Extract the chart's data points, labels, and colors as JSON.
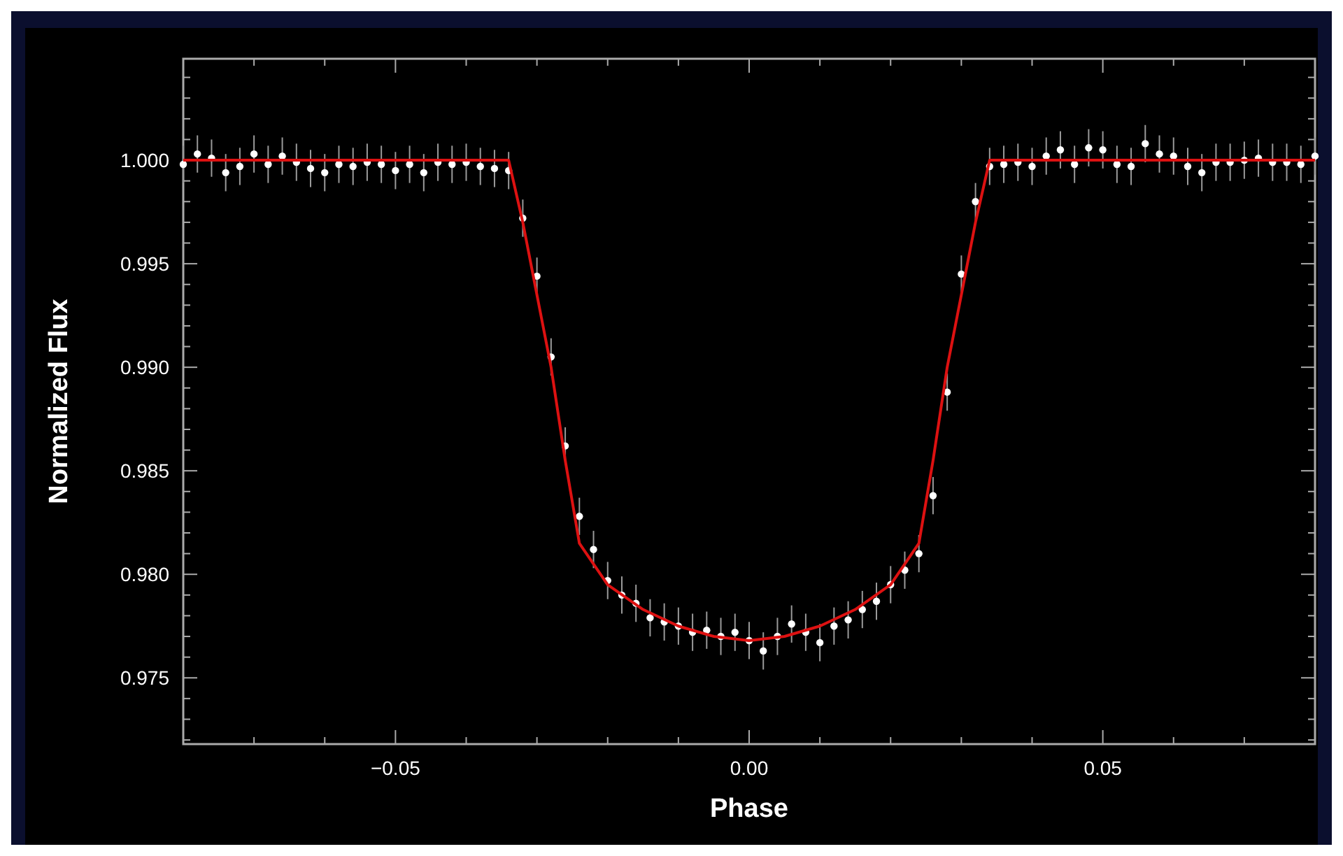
{
  "chart_data": {
    "type": "scatter",
    "xlabel": "Phase",
    "ylabel": "Normalized Flux",
    "xlim": [
      -0.08,
      0.08
    ],
    "ylim": [
      0.9718,
      1.0049
    ],
    "xticks": [
      {
        "value": -0.08,
        "label": null
      },
      {
        "value": -0.07,
        "label": null
      },
      {
        "value": -0.06,
        "label": null
      },
      {
        "value": -0.05,
        "label": "−0.05"
      },
      {
        "value": -0.04,
        "label": null
      },
      {
        "value": -0.03,
        "label": null
      },
      {
        "value": -0.02,
        "label": null
      },
      {
        "value": -0.01,
        "label": null
      },
      {
        "value": 0,
        "label": "0.00"
      },
      {
        "value": 0.01,
        "label": null
      },
      {
        "value": 0.02,
        "label": null
      },
      {
        "value": 0.03,
        "label": null
      },
      {
        "value": 0.04,
        "label": null
      },
      {
        "value": 0.05,
        "label": "0.05"
      },
      {
        "value": 0.06,
        "label": null
      },
      {
        "value": 0.07,
        "label": null
      },
      {
        "value": 0.08,
        "label": null
      }
    ],
    "yticks": [
      {
        "value": 0.972,
        "label": null
      },
      {
        "value": 0.973,
        "label": null
      },
      {
        "value": 0.974,
        "label": null
      },
      {
        "value": 0.975,
        "label": "0.975"
      },
      {
        "value": 0.976,
        "label": null
      },
      {
        "value": 0.977,
        "label": null
      },
      {
        "value": 0.978,
        "label": null
      },
      {
        "value": 0.979,
        "label": null
      },
      {
        "value": 0.98,
        "label": "0.980"
      },
      {
        "value": 0.981,
        "label": null
      },
      {
        "value": 0.982,
        "label": null
      },
      {
        "value": 0.983,
        "label": null
      },
      {
        "value": 0.984,
        "label": null
      },
      {
        "value": 0.985,
        "label": "0.985"
      },
      {
        "value": 0.986,
        "label": null
      },
      {
        "value": 0.987,
        "label": null
      },
      {
        "value": 0.988,
        "label": null
      },
      {
        "value": 0.989,
        "label": null
      },
      {
        "value": 0.99,
        "label": "0.990"
      },
      {
        "value": 0.991,
        "label": null
      },
      {
        "value": 0.992,
        "label": null
      },
      {
        "value": 0.993,
        "label": null
      },
      {
        "value": 0.994,
        "label": null
      },
      {
        "value": 0.995,
        "label": "0.995"
      },
      {
        "value": 0.996,
        "label": null
      },
      {
        "value": 0.997,
        "label": null
      },
      {
        "value": 0.998,
        "label": null
      },
      {
        "value": 0.999,
        "label": null
      },
      {
        "value": 1.0,
        "label": "1.000"
      },
      {
        "value": 1.001,
        "label": null
      },
      {
        "value": 1.002,
        "label": null
      },
      {
        "value": 1.003,
        "label": null
      },
      {
        "value": 1.004,
        "label": null
      }
    ],
    "grid": false,
    "series": [
      {
        "marker": "circle",
        "color": "#ffffff",
        "x": [
          -0.08,
          -0.078,
          -0.076,
          -0.074,
          -0.072,
          -0.07,
          -0.068,
          -0.066,
          -0.064,
          -0.062,
          -0.06,
          -0.058,
          -0.056,
          -0.054,
          -0.052,
          -0.05,
          -0.048,
          -0.046,
          -0.044,
          -0.042,
          -0.04,
          -0.038,
          -0.036,
          -0.034,
          -0.032,
          -0.03,
          -0.028,
          -0.026,
          -0.024,
          -0.022,
          -0.02,
          -0.018,
          -0.016,
          -0.014,
          -0.012,
          -0.01,
          -0.008,
          -0.006,
          -0.004,
          -0.002,
          0,
          0.002,
          0.004,
          0.006,
          0.008,
          0.01,
          0.012,
          0.014,
          0.016,
          0.018,
          0.02,
          0.022,
          0.024,
          0.026,
          0.028,
          0.03,
          0.032,
          0.034,
          0.036,
          0.038,
          0.04,
          0.042,
          0.044,
          0.046,
          0.048,
          0.05,
          0.052,
          0.054,
          0.056,
          0.058,
          0.06,
          0.062,
          0.064,
          0.066,
          0.068,
          0.07,
          0.072,
          0.074,
          0.076,
          0.078,
          0.08
        ],
        "values": [
          0.9998,
          1.0003,
          1.0001,
          0.9994,
          0.9997,
          1.0003,
          0.9998,
          1.0002,
          0.9999,
          0.9996,
          0.9994,
          0.9998,
          0.9997,
          0.9999,
          0.9998,
          0.9995,
          0.9998,
          0.9994,
          0.9999,
          0.9998,
          0.9999,
          0.9997,
          0.9996,
          0.9995,
          0.9972,
          0.9944,
          0.9905,
          0.9862,
          0.9828,
          0.9812,
          0.9797,
          0.979,
          0.9786,
          0.9779,
          0.9777,
          0.9775,
          0.9772,
          0.9773,
          0.977,
          0.9772,
          0.9768,
          0.9763,
          0.977,
          0.9776,
          0.9772,
          0.9767,
          0.9775,
          0.9778,
          0.9783,
          0.9787,
          0.9795,
          0.9802,
          0.981,
          0.9838,
          0.9888,
          0.9945,
          0.998,
          0.9997,
          0.9998,
          0.9999,
          0.9997,
          1.0002,
          1.0005,
          0.9998,
          1.0006,
          1.0005,
          0.9998,
          0.9997,
          1.0008,
          1.0003,
          1.0002,
          0.9997,
          0.9994,
          0.9999,
          0.9999,
          1.0,
          1.0001,
          0.9999,
          0.9999,
          0.9998,
          1.0002
        ],
        "errors": [
          0.0009,
          0.0009,
          0.0009,
          0.0009,
          0.0009,
          0.0009,
          0.0009,
          0.0009,
          0.0009,
          0.0009,
          0.0009,
          0.0009,
          0.0009,
          0.0009,
          0.0009,
          0.0009,
          0.0009,
          0.0009,
          0.0009,
          0.0009,
          0.0009,
          0.0009,
          0.0009,
          0.0009,
          0.0009,
          0.0009,
          0.0009,
          0.0009,
          0.0009,
          0.0009,
          0.0009,
          0.0009,
          0.0009,
          0.0009,
          0.0009,
          0.0009,
          0.0009,
          0.0009,
          0.0009,
          0.0009,
          0.0009,
          0.0009,
          0.0009,
          0.0009,
          0.0009,
          0.0009,
          0.0009,
          0.0009,
          0.0009,
          0.0009,
          0.0009,
          0.0009,
          0.0009,
          0.0009,
          0.0009,
          0.0009,
          0.0009,
          0.0009,
          0.0009,
          0.0009,
          0.0009,
          0.0009,
          0.0009,
          0.0009,
          0.0009,
          0.0009,
          0.0009,
          0.0009,
          0.0009,
          0.0009,
          0.0009,
          0.0009,
          0.0009,
          0.0009,
          0.0009,
          0.0009,
          0.0009,
          0.0009,
          0.0009,
          0.0009,
          0.0009
        ]
      },
      {
        "type": "line",
        "marker": "none",
        "color": "#dd1111",
        "x": [
          -0.08,
          -0.034,
          -0.032,
          -0.03,
          -0.028,
          -0.026,
          -0.024,
          -0.02,
          -0.015,
          -0.01,
          -0.005,
          0,
          0.005,
          0.01,
          0.015,
          0.02,
          0.024,
          0.026,
          0.028,
          0.03,
          0.032,
          0.034,
          0.08
        ],
        "values": [
          1.0,
          1.0,
          0.997,
          0.9935,
          0.99,
          0.9855,
          0.9815,
          0.9795,
          0.9783,
          0.9775,
          0.977,
          0.9768,
          0.977,
          0.9775,
          0.9783,
          0.9795,
          0.9815,
          0.9855,
          0.99,
          0.9935,
          0.997,
          1.0,
          1.0
        ]
      }
    ]
  }
}
